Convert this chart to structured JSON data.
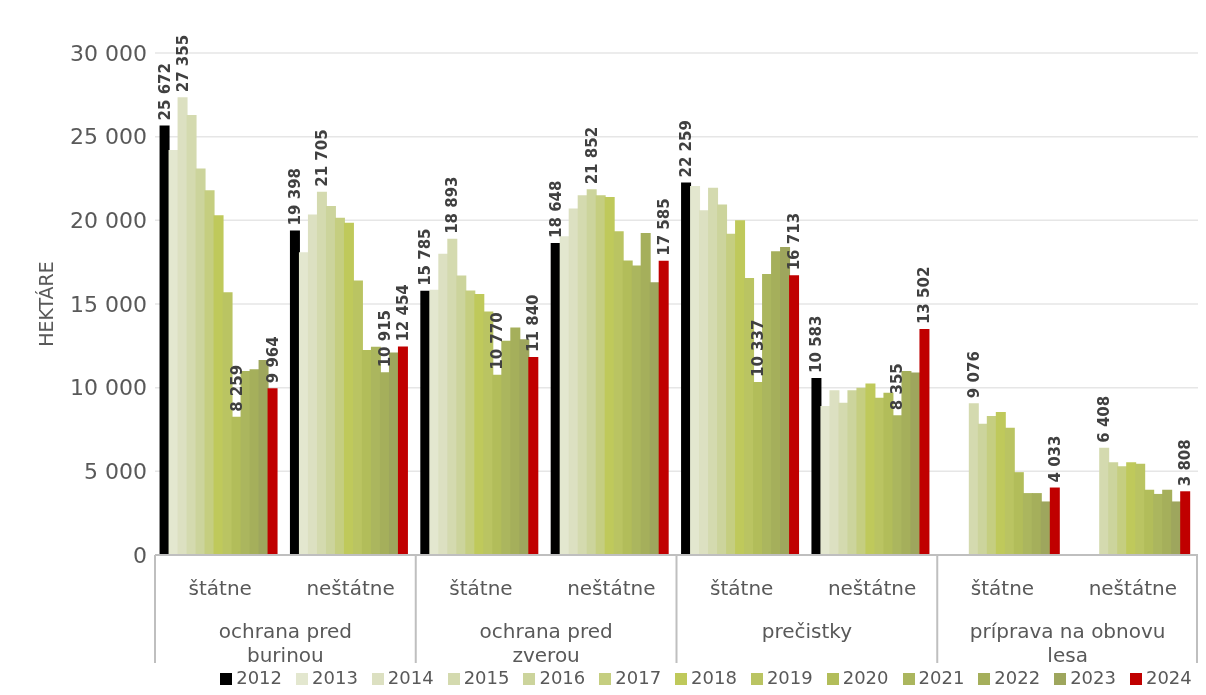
{
  "chart_data": {
    "type": "bar",
    "ylabel": "HEKTÁRE",
    "categories": [
      "štátne",
      "neštátne",
      "štátne",
      "neštátne",
      "štátne",
      "neštátne",
      "štátne",
      "neštátne"
    ],
    "annotations": [
      "ochrana pred burinou",
      "ochrana pred zverou",
      "prečistky",
      "príprava na obnovu lesa"
    ],
    "ylim": [
      0,
      30000
    ],
    "yticks": [
      0,
      {
        "value": 5000,
        "label": "5 000"
      },
      {
        "value": 10000,
        "label": "10 000"
      },
      {
        "value": 15000,
        "label": "15 000"
      },
      {
        "value": 20000,
        "label": "20 000"
      },
      {
        "value": 25000,
        "label": "25 000"
      },
      {
        "value": 30000,
        "label": "30 000"
      }
    ],
    "grid": "y",
    "legend": "bottom",
    "series": [
      {
        "name": "2012",
        "color": "#000000",
        "values": [
          25672,
          19398,
          15785,
          18648,
          22259,
          10583,
          null,
          null
        ],
        "value_labels": [
          "25 672",
          "19 398",
          "15 785",
          "18 648",
          "22 259",
          "10 583",
          null,
          null
        ]
      },
      {
        "name": "2013",
        "color": "#e3e7cf",
        "values": [
          24200,
          18100,
          15850,
          19050,
          22050,
          8900,
          null,
          null
        ],
        "value_labels": [
          null,
          null,
          null,
          null,
          null,
          null,
          null,
          null
        ]
      },
      {
        "name": "2014",
        "color": "#dce0c1",
        "values": [
          27355,
          20350,
          18000,
          20700,
          20600,
          9850,
          null,
          null
        ],
        "value_labels": [
          "27 355",
          null,
          null,
          null,
          null,
          null,
          null,
          null
        ]
      },
      {
        "name": "2015",
        "color": "#d4daaf",
        "values": [
          26300,
          21705,
          18893,
          21500,
          21950,
          9100,
          9076,
          6408
        ],
        "value_labels": [
          null,
          "21 705",
          "18 893",
          null,
          null,
          null,
          "9 076",
          "6 408"
        ]
      },
      {
        "name": "2016",
        "color": "#ccd49c",
        "values": [
          23100,
          20850,
          16700,
          21852,
          20950,
          9850,
          7850,
          5550
        ],
        "value_labels": [
          null,
          null,
          null,
          "21 852",
          null,
          null,
          null,
          null
        ]
      },
      {
        "name": "2017",
        "color": "#c5ce80",
        "values": [
          21800,
          20150,
          15800,
          21500,
          19200,
          10000,
          8300,
          5300
        ],
        "value_labels": [
          null,
          null,
          null,
          null,
          null,
          null,
          null,
          null
        ]
      },
      {
        "name": "2018",
        "color": "#bfc95b",
        "values": [
          20300,
          19850,
          15600,
          21400,
          20000,
          10250,
          8550,
          5550
        ],
        "value_labels": [
          null,
          null,
          null,
          null,
          null,
          null,
          null,
          null
        ]
      },
      {
        "name": "2019",
        "color": "#bac462",
        "values": [
          15700,
          16400,
          14550,
          19350,
          16550,
          9400,
          7600,
          5450
        ],
        "value_labels": [
          null,
          null,
          null,
          null,
          null,
          null,
          null,
          null
        ]
      },
      {
        "name": "2020",
        "color": "#b2bd5a",
        "values": [
          8259,
          12250,
          10770,
          17600,
          10337,
          9700,
          4950,
          3900
        ],
        "value_labels": [
          "8 259",
          null,
          "10 770",
          null,
          "10 337",
          null,
          null,
          null
        ]
      },
      {
        "name": "2021",
        "color": "#abb65e",
        "values": [
          11000,
          12450,
          12800,
          17300,
          16800,
          8355,
          3700,
          3650
        ],
        "value_labels": [
          null,
          null,
          null,
          null,
          null,
          "8 355",
          null,
          null
        ]
      },
      {
        "name": "2022",
        "color": "#a5af5b",
        "values": [
          11100,
          10915,
          13600,
          19250,
          18150,
          11000,
          3700,
          3900
        ],
        "value_labels": [
          null,
          "10 915",
          null,
          null,
          null,
          null,
          null,
          null
        ]
      },
      {
        "name": "2023",
        "color": "#9ea65d",
        "values": [
          11650,
          12100,
          12900,
          16300,
          18400,
          10900,
          3200,
          3200
        ],
        "value_labels": [
          null,
          null,
          null,
          null,
          null,
          null,
          null,
          null
        ]
      },
      {
        "name": "2024",
        "color": "#c00000",
        "values": [
          9964,
          12454,
          11840,
          17585,
          16713,
          13502,
          4033,
          3808
        ],
        "value_labels": [
          "9 964",
          "12 454",
          "11 840",
          "17 585",
          "16 713",
          "13 502",
          "4 033",
          "3 808"
        ]
      }
    ]
  }
}
